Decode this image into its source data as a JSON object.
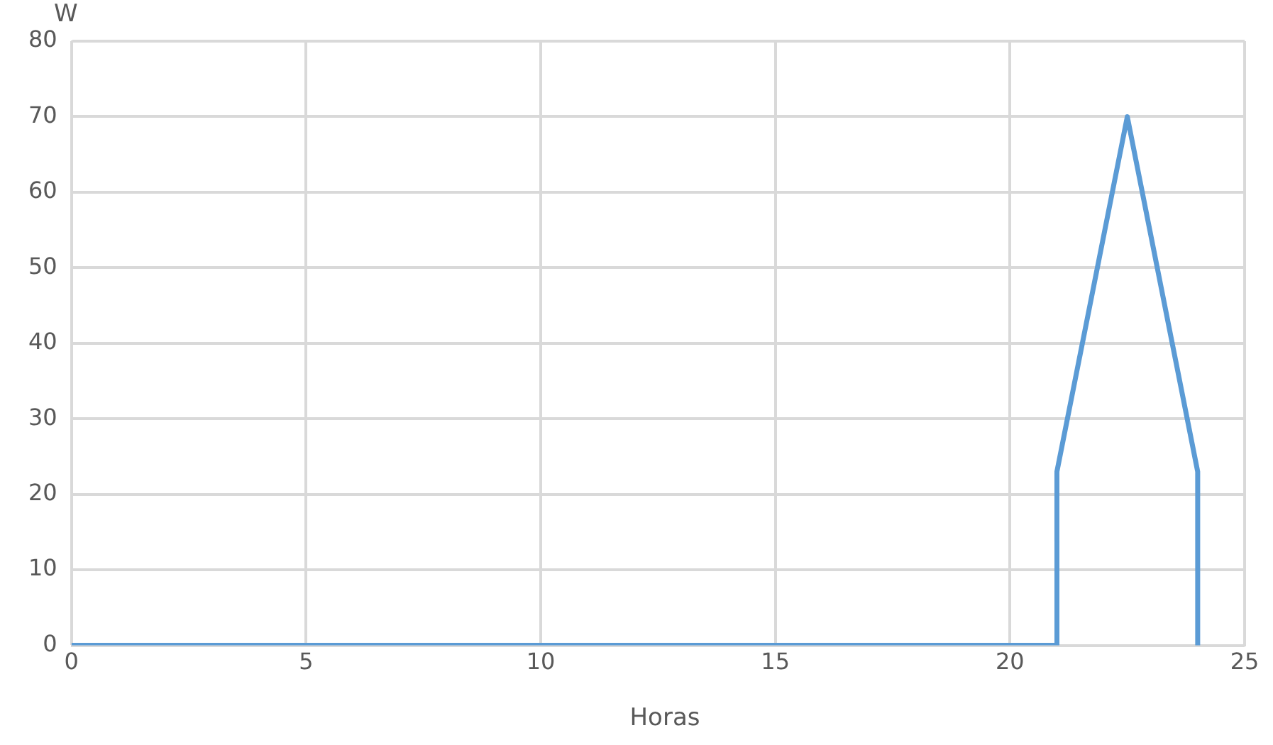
{
  "chart_data": {
    "type": "line",
    "xlabel": "Horas",
    "ylabel": "W",
    "x": [
      0,
      21,
      21,
      22.5,
      24,
      24
    ],
    "series": [
      {
        "color": "#5b9bd5",
        "values": [
          0,
          0,
          23,
          70,
          23,
          0
        ]
      }
    ],
    "xlim": [
      0,
      25
    ],
    "xticks": [
      0,
      5,
      10,
      15,
      20,
      25
    ],
    "ylim": [
      0,
      80
    ],
    "yticks": [
      0,
      10,
      20,
      30,
      40,
      50,
      60,
      70,
      80
    ],
    "grid": true,
    "legend": false,
    "marker": "none",
    "line_style": "solid"
  }
}
